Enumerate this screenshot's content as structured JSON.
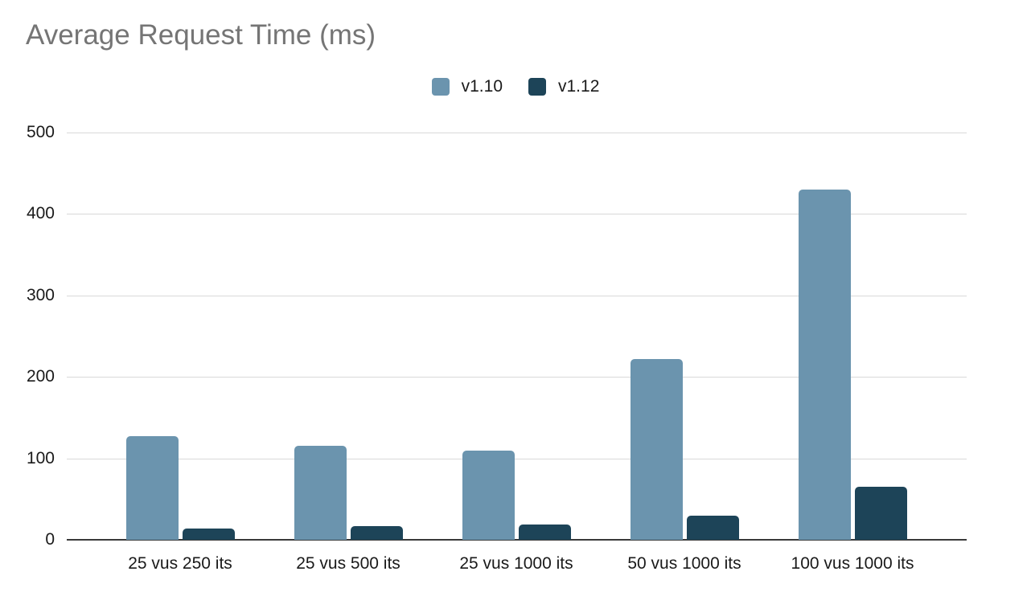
{
  "title": "Average Request Time (ms)",
  "legend": {
    "position": "top",
    "items": [
      {
        "label": "v1.10",
        "color": "#6b94ae"
      },
      {
        "label": "v1.12",
        "color": "#1d4458"
      }
    ]
  },
  "colors": {
    "series_light": "#6b94ae",
    "series_dark": "#1d4458",
    "title_text": "#757575",
    "tick_text": "#1a1a1a",
    "gridline": "#d9d9d9",
    "axis_line": "#3a3a3a",
    "background": "#ffffff"
  },
  "chart_data": {
    "type": "bar",
    "title": "Average Request Time (ms)",
    "xlabel": "",
    "ylabel": "",
    "categories": [
      "25 vus 250 its",
      "25 vus 500 its",
      "25 vus 1000 its",
      "50 vus 1000 its",
      "100 vus 1000 its"
    ],
    "series": [
      {
        "name": "v1.10",
        "color": "#6b94ae",
        "values": [
          127,
          115,
          109,
          222,
          430
        ]
      },
      {
        "name": "v1.12",
        "color": "#1d4458",
        "values": [
          14,
          17,
          19,
          30,
          65
        ]
      }
    ],
    "ylim": [
      0,
      500
    ],
    "yticks": [
      0,
      100,
      200,
      300,
      400,
      500
    ],
    "grid": true,
    "legend_position": "top"
  }
}
